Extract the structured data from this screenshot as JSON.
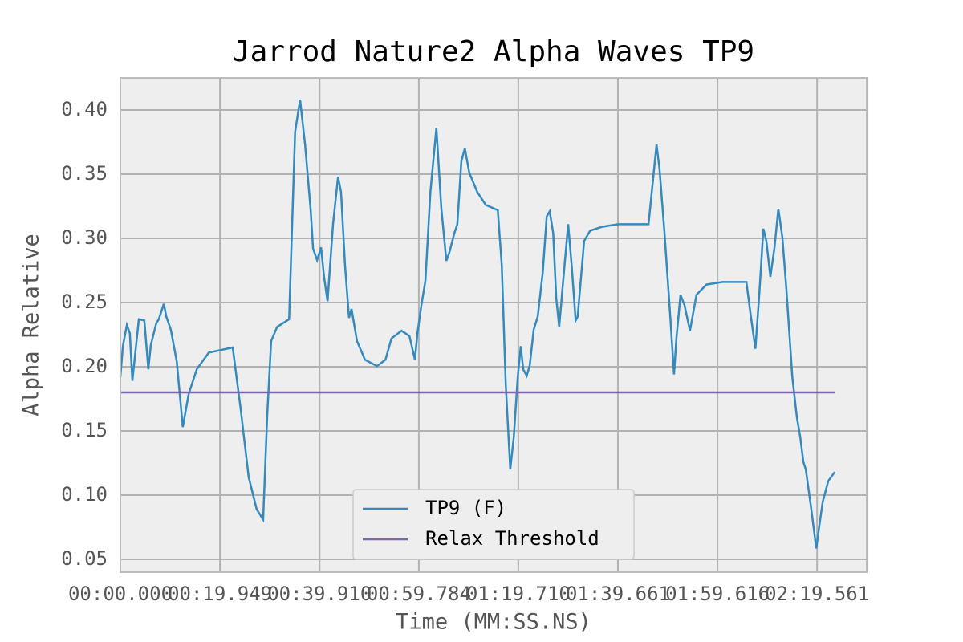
{
  "chart_data": {
    "type": "line",
    "title": "Jarrod Nature2 Alpha Waves TP9",
    "x_label": "Time (MM:SS.NS)",
    "y_label": "Alpha Relative",
    "xlim": [
      0,
      149.5
    ],
    "ylim": [
      0.04,
      0.425
    ],
    "xticks": [
      {
        "value": 0,
        "label": "00:00.000"
      },
      {
        "value": 19.949,
        "label": "00:19.949"
      },
      {
        "value": 39.91,
        "label": "00:39.910"
      },
      {
        "value": 59.784,
        "label": "00:59.784"
      },
      {
        "value": 79.71,
        "label": "01:19.710"
      },
      {
        "value": 99.661,
        "label": "01:39.661"
      },
      {
        "value": 119.616,
        "label": "01:59.616"
      },
      {
        "value": 139.561,
        "label": "02:19.561"
      }
    ],
    "yticks": [
      {
        "value": 0.05,
        "label": "0.05"
      },
      {
        "value": 0.1,
        "label": "0.10"
      },
      {
        "value": 0.15,
        "label": "0.15"
      },
      {
        "value": 0.2,
        "label": "0.20"
      },
      {
        "value": 0.25,
        "label": "0.25"
      },
      {
        "value": 0.3,
        "label": "0.30"
      },
      {
        "value": 0.35,
        "label": "0.35"
      },
      {
        "value": 0.4,
        "label": "0.40"
      }
    ],
    "grid": true,
    "legend": "lower center",
    "series": [
      {
        "name": "TP9 (F)",
        "color": "#348abd",
        "x": [
          0,
          0.5,
          1.3,
          1.9,
          2.4,
          2.9,
          3.7,
          4.8,
          5.6,
          6.1,
          7.2,
          7.7,
          8.7,
          9.2,
          10.1,
          11.3,
          12.5,
          13.7,
          15.3,
          17.7,
          22.5,
          24.1,
          25.7,
          27.3,
          28.6,
          29.4,
          30.2,
          31.4,
          33.8,
          35.0,
          36.0,
          37.0,
          38.1,
          38.6,
          39.4,
          40.2,
          40.8,
          41.5,
          42.6,
          43.6,
          44.2,
          45.0,
          45.8,
          46.3,
          47.4,
          49.0,
          51.4,
          53.1,
          54.3,
          56.3,
          57.9,
          59.0,
          59.5,
          60.3,
          61.1,
          62.1,
          63.3,
          64.3,
          65.3,
          65.9,
          66.9,
          67.5,
          68.3,
          69.0,
          69.9,
          71.5,
          73.2,
          75.6,
          76.4,
          77.2,
          78.1,
          78.8,
          79.6,
          80.2,
          80.7,
          81.4,
          82.0,
          82.8,
          83.6,
          84.6,
          85.4,
          86.0,
          86.7,
          87.3,
          87.9,
          88.7,
          89.7,
          90.4,
          91.2,
          91.6,
          92.9,
          94.1,
          96.5,
          99.7,
          105.8,
          106.6,
          107.4,
          108.0,
          109.0,
          110.1,
          110.9,
          111.4,
          112.2,
          113.0,
          114.1,
          115.4,
          117.4,
          120.6,
          125.4,
          126.2,
          127.2,
          128.0,
          128.8,
          129.4,
          130.2,
          131.0,
          131.8,
          132.6,
          133.4,
          134.6,
          135.5,
          136.2,
          136.8,
          137.3,
          138.3,
          139.4,
          140.0,
          140.7,
          141.8,
          143.1
        ],
        "values": [
          0.192,
          0.216,
          0.2325,
          0.226,
          0.189,
          0.2075,
          0.237,
          0.236,
          0.198,
          0.217,
          0.234,
          0.237,
          0.249,
          0.239,
          0.229,
          0.204,
          0.153,
          0.179,
          0.198,
          0.211,
          0.215,
          0.167,
          0.114,
          0.089,
          0.081,
          0.161,
          0.22,
          0.231,
          0.237,
          0.383,
          0.408,
          0.373,
          0.323,
          0.292,
          0.283,
          0.293,
          0.27,
          0.251,
          0.311,
          0.348,
          0.336,
          0.279,
          0.238,
          0.245,
          0.22,
          0.2055,
          0.2005,
          0.2055,
          0.222,
          0.228,
          0.224,
          0.2055,
          0.226,
          0.248,
          0.267,
          0.336,
          0.386,
          0.323,
          0.2825,
          0.289,
          0.304,
          0.311,
          0.36,
          0.37,
          0.351,
          0.336,
          0.326,
          0.322,
          0.279,
          0.186,
          0.12,
          0.145,
          0.192,
          0.216,
          0.198,
          0.193,
          0.201,
          0.229,
          0.239,
          0.273,
          0.317,
          0.321,
          0.304,
          0.254,
          0.231,
          0.267,
          0.311,
          0.279,
          0.236,
          0.239,
          0.298,
          0.306,
          0.309,
          0.311,
          0.311,
          0.342,
          0.373,
          0.354,
          0.304,
          0.242,
          0.194,
          0.223,
          0.256,
          0.248,
          0.228,
          0.256,
          0.264,
          0.266,
          0.266,
          0.242,
          0.214,
          0.2575,
          0.3075,
          0.298,
          0.27,
          0.292,
          0.323,
          0.301,
          0.261,
          0.192,
          0.161,
          0.145,
          0.126,
          0.12,
          0.092,
          0.0585,
          0.076,
          0.095,
          0.111,
          0.118
        ]
      },
      {
        "name": "Relax Threshold",
        "color": "#7a68a6",
        "x": [
          0,
          143.1
        ],
        "values": [
          0.18,
          0.18
        ]
      }
    ]
  }
}
